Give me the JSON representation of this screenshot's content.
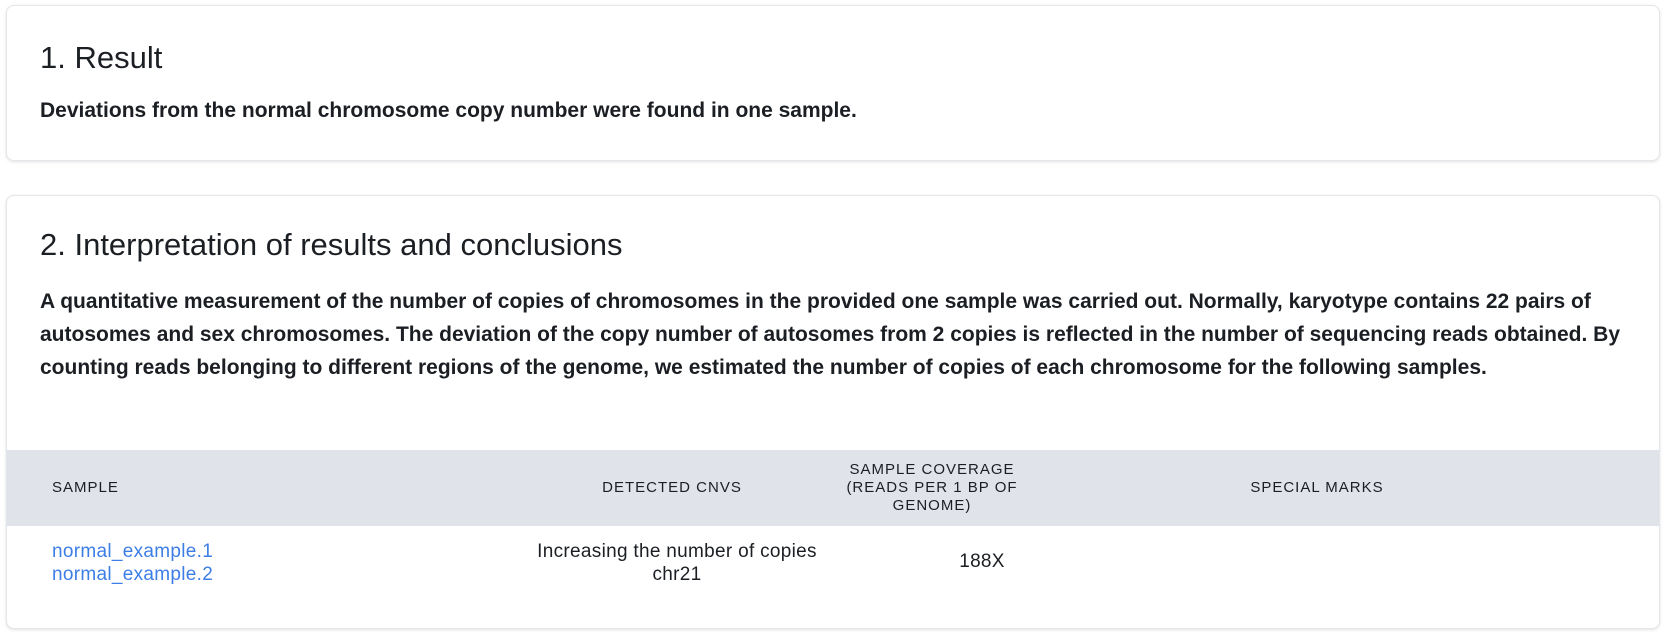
{
  "result": {
    "title": "1. Result",
    "text": "Deviations from the normal chromosome copy number were found in one sample."
  },
  "interpretation": {
    "title": "2. Interpretation of results and conclusions",
    "text": "A quantitative measurement of the number of copies of chromosomes in the provided one sample was carried out. Normally, karyotype contains 22 pairs of autosomes and sex chromosomes. The deviation of the copy number of autosomes from 2 copies is reflected in the number of sequencing reads obtained. By counting reads belonging to different regions of the genome, we estimated the number of copies of each chromosome for the following samples."
  },
  "table": {
    "headers": {
      "sample": "Sample",
      "detected_cnvs": "Detected CNVs",
      "coverage_line1": "Sample coverage",
      "coverage_line2": "(reads per 1 bp of",
      "coverage_line3": "genome)",
      "special_marks": "Special marks"
    },
    "rows": [
      {
        "samples": [
          "normal_example.1",
          "normal_example.2"
        ],
        "cnv_line1": "Increasing the number of copies",
        "cnv_line2": "chr21",
        "coverage": "188X",
        "special_marks": ""
      }
    ]
  },
  "colors": {
    "link": "#3d7ee6",
    "table_header_bg": "#e0e3ea",
    "text": "#1b1f24"
  }
}
